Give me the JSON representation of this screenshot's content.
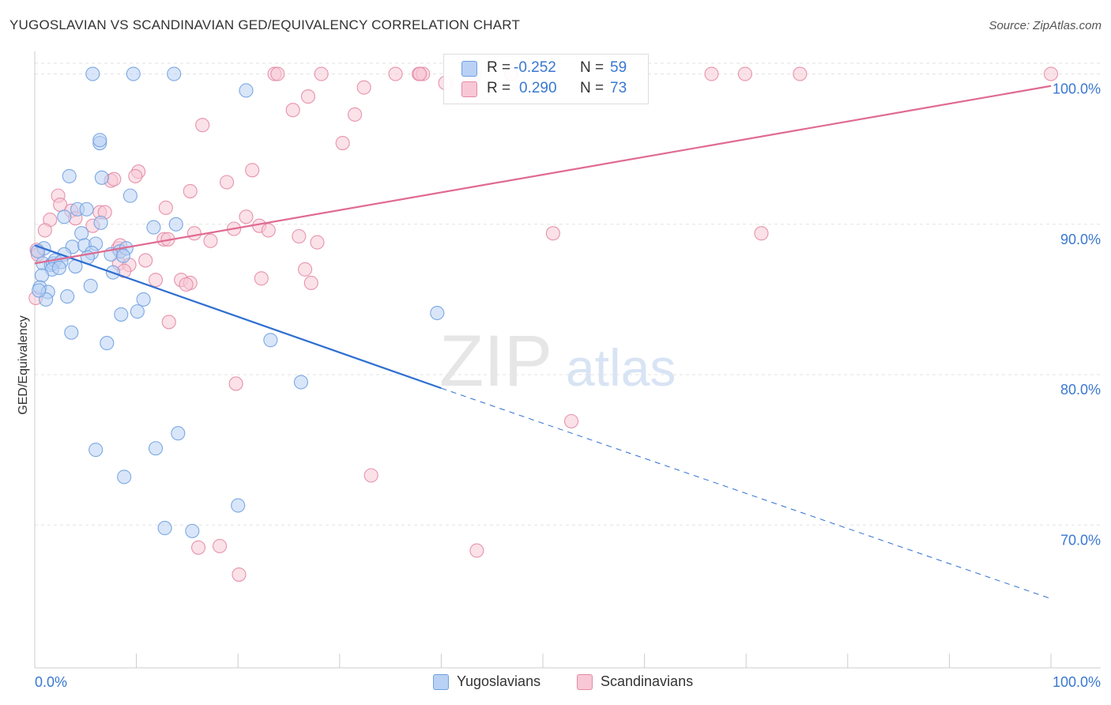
{
  "header": {
    "title": "YUGOSLAVIAN VS SCANDINAVIAN GED/EQUIVALENCY CORRELATION CHART",
    "source": "Source: ZipAtlas.com"
  },
  "watermark": {
    "zip": "ZIP",
    "atlas": "atlas"
  },
  "stats": {
    "rows": [
      {
        "r_label": "R =",
        "r_value": "-0.252",
        "n_label": "N =",
        "n_value": "59",
        "color": "#6fa0e0",
        "fill": "#b9d1f4"
      },
      {
        "r_label": "R =",
        "r_value": "0.290",
        "n_label": "N =",
        "n_value": "73",
        "color": "#e38aa5",
        "fill": "#f8c8d6"
      }
    ]
  },
  "legend": {
    "items": [
      {
        "label": "Yugoslavians",
        "color": "#6fa0e0",
        "fill": "#b9d1f4"
      },
      {
        "label": "Scandinavians",
        "color": "#e38aa5",
        "fill": "#f8c8d6"
      }
    ]
  },
  "chart_data": {
    "type": "scatter",
    "title": "YUGOSLAVIAN VS SCANDINAVIAN GED/EQUIVALENCY CORRELATION CHART",
    "xlabel": "",
    "ylabel": "GED/Equivalency",
    "xlim": [
      0,
      100
    ],
    "ylim": [
      60.5,
      101.5
    ],
    "x_tick_labels": [
      "0.0%",
      "100.0%"
    ],
    "y_ticks": [
      {
        "value": 70,
        "label": "70.0%"
      },
      {
        "value": 80,
        "label": "80.0%"
      },
      {
        "value": 90,
        "label": "90.0%"
      },
      {
        "value": 100,
        "label": "100.0%"
      }
    ],
    "grid": true,
    "legend_position": "bottom",
    "series": [
      {
        "name": "Yugoslavians",
        "color": "#4a86d8",
        "fill": "#b9d1f4",
        "stroke": "#6fa0e0",
        "trend": {
          "x0": 0,
          "y0": 88.6,
          "x1": 40,
          "y1": 79.1,
          "dashed_to_x": 100,
          "dashed_to_y": 65.1,
          "color": "#2f6fd0"
        },
        "points": [
          [
            5.7,
            100
          ],
          [
            9.7,
            100
          ],
          [
            13.7,
            100
          ],
          [
            20.8,
            98.9
          ],
          [
            6.4,
            95.4
          ],
          [
            6.4,
            95.6
          ],
          [
            3.4,
            93.2
          ],
          [
            6.6,
            93.1
          ],
          [
            9.4,
            91.9
          ],
          [
            4.2,
            91
          ],
          [
            5.1,
            91
          ],
          [
            2.9,
            90.5
          ],
          [
            13.9,
            90
          ],
          [
            11.7,
            89.8
          ],
          [
            6.5,
            90.1
          ],
          [
            4.6,
            89.4
          ],
          [
            3.7,
            88.5
          ],
          [
            4.9,
            88.6
          ],
          [
            6.0,
            88.7
          ],
          [
            8.4,
            88.2
          ],
          [
            9.0,
            88.4
          ],
          [
            0.9,
            88.4
          ],
          [
            0.3,
            88.2
          ],
          [
            2.9,
            88.0
          ],
          [
            5.6,
            88.1
          ],
          [
            7.5,
            88.0
          ],
          [
            5.2,
            87.8
          ],
          [
            8.7,
            87.9
          ],
          [
            0.8,
            87.4
          ],
          [
            1.6,
            87.3
          ],
          [
            1.8,
            87.4
          ],
          [
            2.0,
            87.6
          ],
          [
            2.6,
            87.5
          ],
          [
            1.7,
            87.0
          ],
          [
            2.4,
            87.1
          ],
          [
            4.0,
            87.2
          ],
          [
            7.7,
            86.8
          ],
          [
            0.7,
            86.6
          ],
          [
            5.5,
            85.9
          ],
          [
            0.5,
            85.8
          ],
          [
            1.3,
            85.5
          ],
          [
            3.2,
            85.2
          ],
          [
            10.7,
            85.0
          ],
          [
            1.1,
            85.0
          ],
          [
            10.1,
            84.2
          ],
          [
            8.5,
            84.0
          ],
          [
            39.6,
            84.1
          ],
          [
            3.6,
            82.8
          ],
          [
            23.2,
            82.3
          ],
          [
            7.1,
            82.1
          ],
          [
            26.2,
            79.5
          ],
          [
            14.1,
            76.1
          ],
          [
            11.9,
            75.1
          ],
          [
            6.0,
            75.0
          ],
          [
            8.8,
            73.2
          ],
          [
            20.0,
            71.3
          ],
          [
            12.8,
            69.8
          ],
          [
            15.5,
            69.6
          ],
          [
            0.4,
            85.6
          ]
        ]
      },
      {
        "name": "Scandinavians",
        "color": "#e06a92",
        "fill": "#f8c8d6",
        "stroke": "#e38aa5",
        "trend": {
          "x0": 0,
          "y0": 87.4,
          "x1": 100,
          "y1": 99.2,
          "color": "#e06a92"
        },
        "points": [
          [
            23.6,
            100
          ],
          [
            23.9,
            100
          ],
          [
            28.2,
            100
          ],
          [
            35.5,
            100
          ],
          [
            37.8,
            100
          ],
          [
            38.2,
            100
          ],
          [
            37.9,
            100
          ],
          [
            43.3,
            100
          ],
          [
            46.9,
            100
          ],
          [
            66.6,
            100
          ],
          [
            69.9,
            100
          ],
          [
            75.3,
            100
          ],
          [
            100,
            100
          ],
          [
            40.4,
            99.4
          ],
          [
            32.4,
            99.1
          ],
          [
            26.9,
            98.5
          ],
          [
            25.4,
            97.6
          ],
          [
            31.5,
            97.3
          ],
          [
            16.5,
            96.6
          ],
          [
            30.3,
            95.4
          ],
          [
            10.2,
            93.5
          ],
          [
            21.4,
            93.6
          ],
          [
            9.9,
            93.2
          ],
          [
            7.5,
            92.9
          ],
          [
            18.9,
            92.8
          ],
          [
            2.3,
            91.9
          ],
          [
            15.3,
            92.2
          ],
          [
            2.5,
            91.3
          ],
          [
            12.9,
            91.1
          ],
          [
            3.6,
            90.9
          ],
          [
            6.4,
            90.8
          ],
          [
            6.9,
            90.8
          ],
          [
            20.8,
            90.5
          ],
          [
            4.0,
            90.4
          ],
          [
            1.5,
            90.3
          ],
          [
            5.7,
            89.9
          ],
          [
            22.1,
            89.9
          ],
          [
            19.6,
            89.7
          ],
          [
            1.0,
            89.6
          ],
          [
            23.0,
            89.6
          ],
          [
            15.7,
            89.4
          ],
          [
            51.0,
            89.4
          ],
          [
            71.5,
            89.4
          ],
          [
            26.0,
            89.2
          ],
          [
            12.7,
            89.0
          ],
          [
            13.1,
            89.0
          ],
          [
            17.3,
            88.9
          ],
          [
            27.8,
            88.8
          ],
          [
            8.2,
            88.4
          ],
          [
            0.2,
            88.3
          ],
          [
            0.3,
            88.0
          ],
          [
            10.9,
            87.6
          ],
          [
            8.3,
            87.4
          ],
          [
            9.3,
            87.3
          ],
          [
            8.8,
            86.9
          ],
          [
            26.6,
            87.0
          ],
          [
            14.4,
            86.3
          ],
          [
            15.3,
            86.1
          ],
          [
            11.9,
            86.3
          ],
          [
            14.9,
            86.0
          ],
          [
            22.3,
            86.4
          ],
          [
            27.2,
            86.1
          ],
          [
            0.1,
            85.1
          ],
          [
            13.2,
            83.5
          ],
          [
            19.8,
            79.4
          ],
          [
            52.8,
            76.9
          ],
          [
            33.1,
            73.3
          ],
          [
            16.1,
            68.5
          ],
          [
            18.2,
            68.6
          ],
          [
            43.5,
            68.3
          ],
          [
            20.1,
            66.7
          ],
          [
            8.4,
            88.6
          ],
          [
            7.8,
            93.0
          ]
        ]
      }
    ]
  }
}
